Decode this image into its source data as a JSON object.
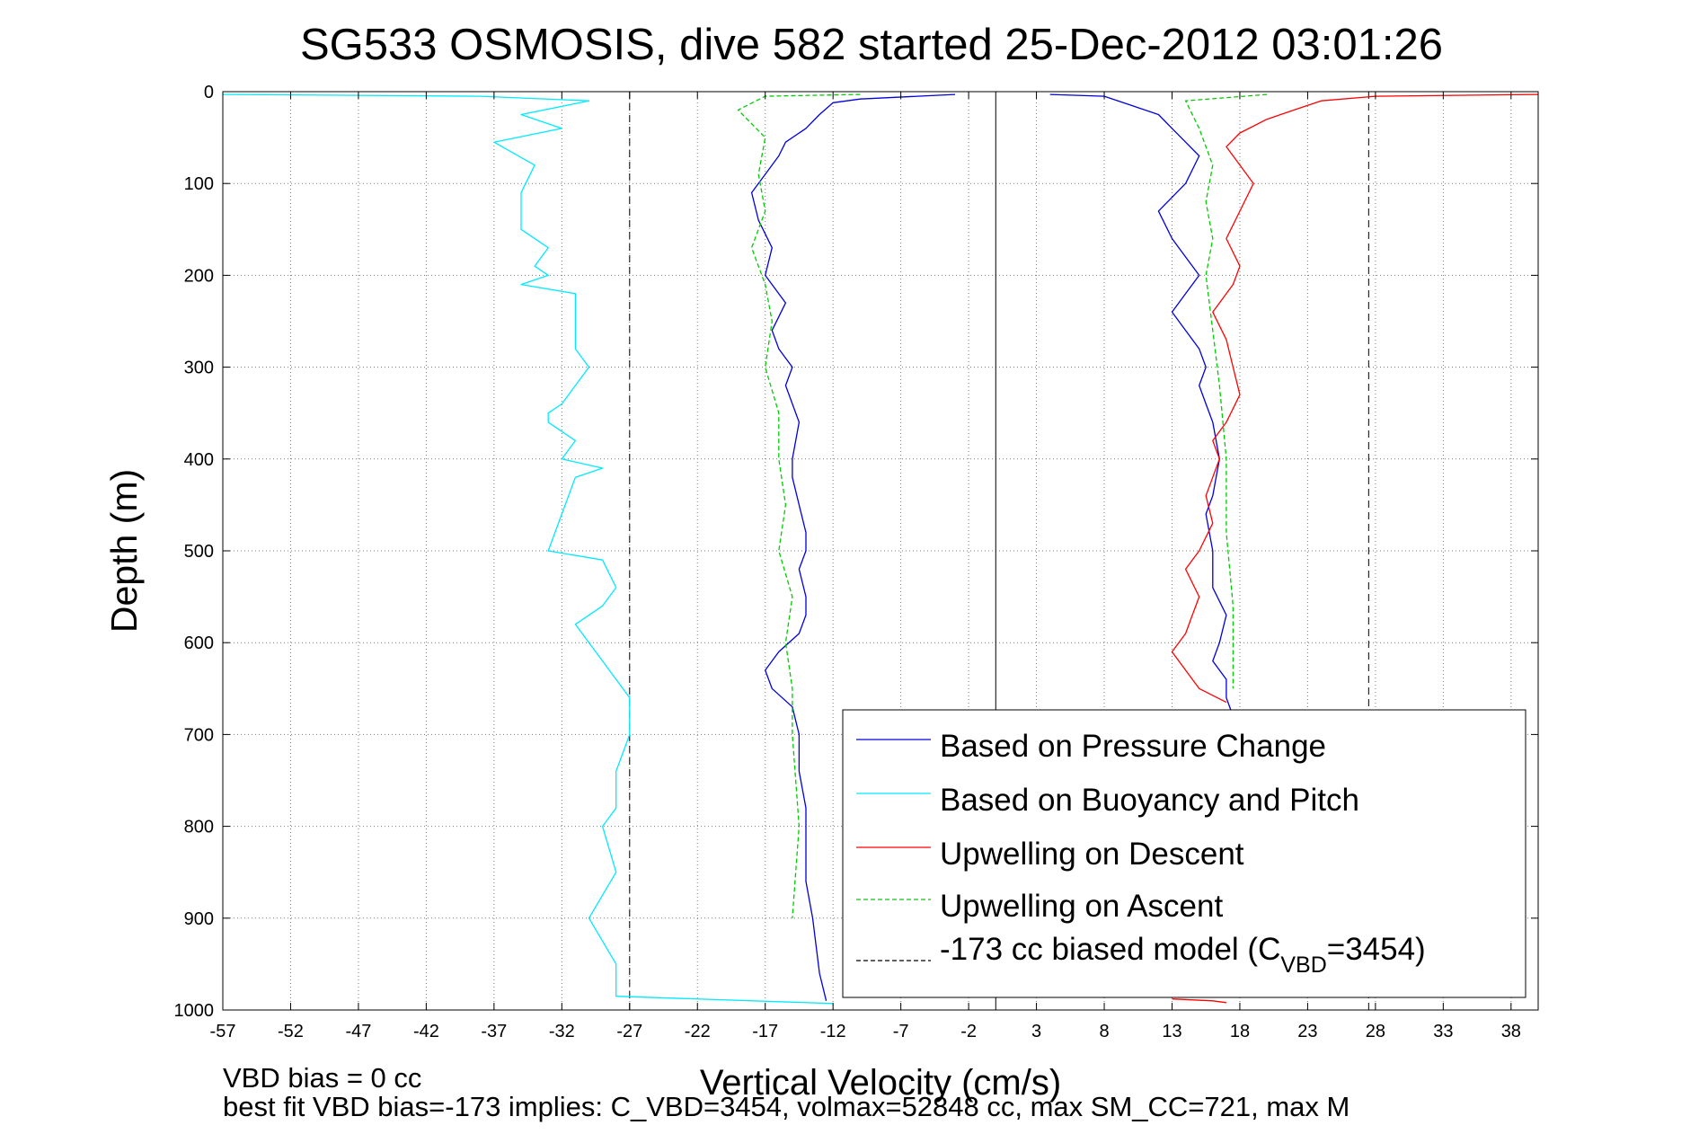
{
  "chart_data": {
    "type": "line",
    "title": "SG533 OSMOSIS, dive 582 started 25-Dec-2012 03:01:26",
    "xlabel": "Vertical Velocity (cm/s)",
    "ylabel": "Depth (m)",
    "xlim": [
      -57,
      40
    ],
    "ylim": [
      0,
      1000
    ],
    "y_reversed": true,
    "grid": true,
    "legend_position": "bottom-right",
    "xticks": [
      -57,
      -52,
      -47,
      -42,
      -37,
      -32,
      -27,
      -22,
      -17,
      -12,
      -7,
      -2,
      3,
      8,
      13,
      18,
      23,
      28,
      33,
      38
    ],
    "yticks": [
      0,
      100,
      200,
      300,
      400,
      500,
      600,
      700,
      800,
      900,
      1000
    ],
    "reference_lines": [
      {
        "x": -27,
        "style": "dashed",
        "color": "#000000"
      },
      {
        "x": 0,
        "style": "solid",
        "color": "#000000"
      },
      {
        "x": 27.5,
        "style": "dashed",
        "color": "#000000"
      }
    ],
    "series": [
      {
        "name": "Based on Pressure Change",
        "color": "#0000dd",
        "style": "solid",
        "segments": [
          {
            "x": [
              -3,
              -10,
              -12,
              -13,
              -14,
              -15.5,
              -16,
              -17,
              -18,
              -17.5,
              -16.5,
              -17,
              -15.5,
              -16.5,
              -16,
              -15,
              -15.5,
              -14.5,
              -15,
              -15,
              -14.5,
              -14,
              -14,
              -14.5,
              -14,
              -14,
              -14.5,
              -16,
              -17,
              -16.5,
              -15,
              -14.5,
              -14.5,
              -14,
              -14,
              -14,
              -13.5,
              -13,
              -12.5
            ],
            "y": [
              3,
              8,
              12,
              25,
              40,
              55,
              70,
              90,
              110,
              140,
              170,
              200,
              230,
              260,
              280,
              300,
              320,
              360,
              400,
              420,
              450,
              480,
              500,
              520,
              550,
              570,
              590,
              610,
              630,
              650,
              670,
              700,
              740,
              780,
              820,
              860,
              900,
              960,
              990
            ]
          },
          {
            "x": [
              4,
              8,
              10,
              12,
              13,
              14,
              15,
              14,
              12,
              13,
              14,
              15,
              14,
              13,
              14,
              15,
              15.5,
              15,
              15.5,
              16,
              16.5,
              16,
              15.5,
              16,
              16,
              17,
              16.5,
              16,
              17,
              17,
              17.5
            ],
            "y": [
              3,
              5,
              15,
              25,
              40,
              55,
              70,
              100,
              130,
              160,
              180,
              200,
              220,
              240,
              260,
              280,
              300,
              320,
              340,
              360,
              400,
              440,
              460,
              500,
              540,
              570,
              600,
              620,
              640,
              660,
              680
            ]
          }
        ]
      },
      {
        "name": "Based on Buoyancy and Pitch",
        "color": "#00eaff",
        "style": "solid",
        "segments": [
          {
            "x": [
              -57,
              -38,
              -30,
              -35,
              -32,
              -37,
              -34,
              -35,
              -35,
              -33,
              -34,
              -33,
              -35,
              -31,
              -31,
              -30,
              -31,
              -32,
              -33,
              -33,
              -31,
              -32,
              -29,
              -31,
              -33,
              -29,
              -28,
              -29,
              -31,
              -30,
              -29,
              -28,
              -27,
              -27,
              -28,
              -28,
              -29,
              -28,
              -30,
              -28,
              -28,
              -12
            ],
            "y": [
              3,
              5,
              10,
              25,
              40,
              55,
              80,
              110,
              150,
              170,
              190,
              200,
              210,
              220,
              280,
              300,
              320,
              340,
              350,
              360,
              380,
              400,
              410,
              420,
              500,
              510,
              540,
              560,
              580,
              600,
              620,
              640,
              660,
              700,
              740,
              780,
              800,
              850,
              900,
              950,
              985,
              993
            ]
          }
        ]
      },
      {
        "name": "Upwelling on Descent",
        "color": "#ff0000",
        "style": "solid",
        "segments": [
          {
            "x": [
              40,
              28,
              24,
              22,
              20,
              18,
              17,
              18,
              19,
              18,
              17,
              18,
              17.5,
              16,
              17,
              17.5,
              18,
              17,
              16,
              16.5,
              15.5,
              16,
              15,
              14,
              15,
              14.5,
              14,
              13,
              14,
              15,
              17
            ],
            "y": [
              3,
              5,
              10,
              20,
              30,
              45,
              60,
              80,
              100,
              130,
              160,
              190,
              210,
              240,
              270,
              300,
              330,
              360,
              380,
              400,
              440,
              470,
              500,
              520,
              550,
              570,
              590,
              610,
              630,
              650,
              665
            ]
          },
          {
            "x": [
              13,
              16,
              17
            ],
            "y": [
              988,
              990,
              992
            ]
          }
        ]
      },
      {
        "name": "Upwelling on Ascent",
        "color": "#00cc00",
        "style": "dashed",
        "segments": [
          {
            "x": [
              -10,
              -17,
              -19,
              -17,
              -17.5,
              -17,
              -18,
              -17,
              -16.5,
              -17,
              -16,
              -16,
              -15.5,
              -16,
              -15,
              -15.5,
              -15,
              -15,
              -14.5,
              -15
            ],
            "y": [
              3,
              5,
              20,
              50,
              90,
              130,
              170,
              210,
              250,
              300,
              350,
              400,
              450,
              500,
              550,
              600,
              650,
              700,
              800,
              900
            ]
          },
          {
            "x": [
              20,
              14,
              15,
              16,
              15.5,
              16,
              15.5,
              16,
              16.5,
              17,
              17,
              17.5,
              17.5
            ],
            "y": [
              3,
              10,
              40,
              80,
              120,
              160,
              200,
              260,
              320,
              400,
              480,
              560,
              650
            ]
          }
        ]
      },
      {
        "name": "-173 cc biased model (C_VBD=3454)",
        "color": "#000000",
        "style": "dashed",
        "legend_only": true
      }
    ]
  },
  "legend": [
    {
      "label": "Based on Pressure Change"
    },
    {
      "label": "Based on Buoyancy and Pitch"
    },
    {
      "label": "Upwelling on Descent"
    },
    {
      "label": "Upwelling on Ascent"
    },
    {
      "label_prefix": "-173 cc biased model (C",
      "label_sub": "VBD",
      "label_suffix": "=3454)"
    }
  ],
  "footer": {
    "line1": "VBD bias = 0 cc",
    "line2": "best fit VBD bias=-173 implies: C_VBD=3454, volmax=52848 cc, max SM_CC=721, max M"
  }
}
